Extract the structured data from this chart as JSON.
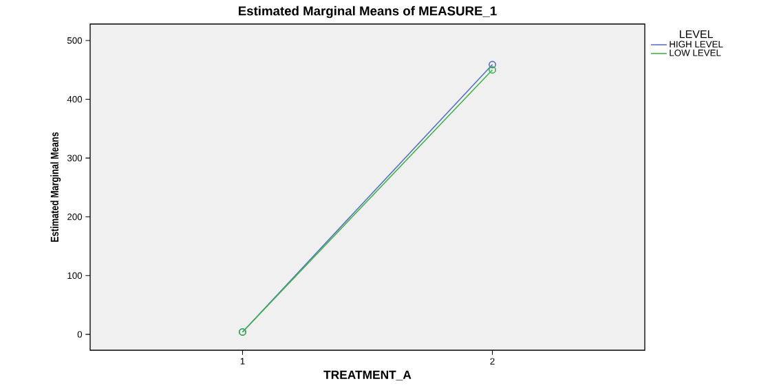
{
  "chart_data": {
    "type": "line",
    "title": "Estimated Marginal Means of MEASURE_1",
    "xlabel": "TREATMENT_A",
    "ylabel": "Estimated Marginal Means",
    "legend_title": "LEVEL",
    "categories": [
      "1",
      "2"
    ],
    "series": [
      {
        "name": "HIGH LEVEL",
        "color": "#5a6fc0",
        "values": [
          4,
          459
        ]
      },
      {
        "name": "LOW LEVEL",
        "color": "#3cb44b",
        "values": [
          4,
          450
        ]
      }
    ],
    "ylim": [
      -27,
      528
    ],
    "yticks": [
      0,
      100,
      200,
      300,
      400,
      500
    ],
    "grid": false,
    "legend": "right",
    "marker": "circle",
    "line_style": "solid"
  }
}
